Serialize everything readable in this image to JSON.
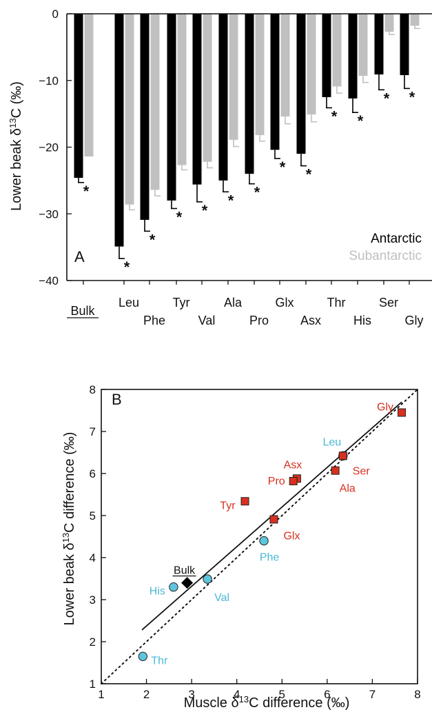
{
  "colors": {
    "antarctic": "#000000",
    "subantarctic": "#c0c0c0",
    "red_marker": "#d7301f",
    "blue_marker": "#5ec5dc",
    "blue_label": "#4bb8d6",
    "red_label": "#d7301f",
    "bulk_marker": "#000000"
  },
  "chart_data": [
    {
      "panel": "A",
      "type": "bar",
      "ylabel_main": "Lower beak δ",
      "ylabel_sup": "13",
      "ylabel_tail": "C (‰)",
      "ylim": [
        -40,
        0
      ],
      "yticks": [
        {
          "v": 0,
          "label": "0"
        },
        {
          "v": -10,
          "label": "−10"
        },
        {
          "v": -20,
          "label": "−20"
        },
        {
          "v": -30,
          "label": "−30"
        },
        {
          "v": -40,
          "label": "−40"
        }
      ],
      "categories": [
        "Bulk",
        "Leu",
        "Phe",
        "Tyr",
        "Val",
        "Ala",
        "Pro",
        "Glx",
        "Asx",
        "Thr",
        "His",
        "Ser",
        "Gly"
      ],
      "series": [
        {
          "name": "Antarctic",
          "values": [
            -24.6,
            -34.9,
            -30.9,
            -28.0,
            -25.6,
            -25.0,
            -24.0,
            -20.4,
            -21.0,
            -12.5,
            -12.7,
            -9.1,
            -9.2
          ],
          "errors": [
            0.7,
            1.8,
            1.7,
            1.2,
            2.6,
            1.7,
            1.5,
            1.3,
            1.8,
            1.6,
            2.1,
            2.3,
            2.0
          ]
        },
        {
          "name": "Subantarctic",
          "values": [
            -21.4,
            -28.6,
            -26.4,
            -22.7,
            -22.2,
            -18.9,
            -18.2,
            -15.4,
            -15.1,
            -10.9,
            -9.3,
            -2.7,
            -1.8
          ],
          "errors": [
            0,
            0.8,
            0.9,
            0.7,
            0.9,
            1.0,
            0.9,
            1.1,
            1.1,
            1.0,
            1.0,
            0.4,
            0.4
          ]
        }
      ],
      "significance_marker": "*",
      "legend": {
        "position": "bottom-right",
        "labels": [
          "Antarctic",
          "Subantarctic"
        ]
      },
      "panel_label": "A"
    },
    {
      "panel": "B",
      "type": "scatter",
      "xlabel_main": "Muscle δ",
      "xlabel_sup": "13",
      "xlabel_tail": "C difference (‰)",
      "ylabel_main": "Lower beak δ",
      "ylabel_sup": "13",
      "ylabel_tail": "C difference (‰)",
      "xlim": [
        1,
        8
      ],
      "ylim": [
        1,
        8
      ],
      "xticks": [
        "1",
        "2",
        "3",
        "4",
        "5",
        "6",
        "7",
        "8"
      ],
      "yticks": [
        "1",
        "2",
        "3",
        "4",
        "5",
        "6",
        "7",
        "8"
      ],
      "points": [
        {
          "label": "Gly",
          "x": 7.65,
          "y": 7.45,
          "group": "red"
        },
        {
          "label": "Leu",
          "x": 6.35,
          "y": 6.42,
          "group": "blue"
        },
        {
          "label": "Ser",
          "x": 6.35,
          "y": 6.42,
          "group": "red"
        },
        {
          "label": "Ala",
          "x": 6.18,
          "y": 6.07,
          "group": "red"
        },
        {
          "label": "Asx",
          "x": 5.33,
          "y": 5.88,
          "group": "red"
        },
        {
          "label": "Pro",
          "x": 5.25,
          "y": 5.82,
          "group": "red"
        },
        {
          "label": "Tyr",
          "x": 4.18,
          "y": 5.34,
          "group": "red"
        },
        {
          "label": "Glx",
          "x": 4.82,
          "y": 4.91,
          "group": "red"
        },
        {
          "label": "Phe",
          "x": 4.6,
          "y": 4.4,
          "group": "blue"
        },
        {
          "label": "Bulk",
          "x": 2.9,
          "y": 3.4,
          "group": "bulk"
        },
        {
          "label": "Val",
          "x": 3.35,
          "y": 3.49,
          "group": "blue"
        },
        {
          "label": "His",
          "x": 2.6,
          "y": 3.3,
          "group": "blue"
        },
        {
          "label": "Thr",
          "x": 1.92,
          "y": 1.65,
          "group": "blue"
        }
      ],
      "regression_line": {
        "x": [
          1.9,
          7.65
        ],
        "y": [
          2.28,
          7.7
        ]
      },
      "identity_line": {
        "x": [
          1,
          8
        ],
        "y": [
          1,
          8
        ]
      },
      "panel_label": "B"
    }
  ]
}
